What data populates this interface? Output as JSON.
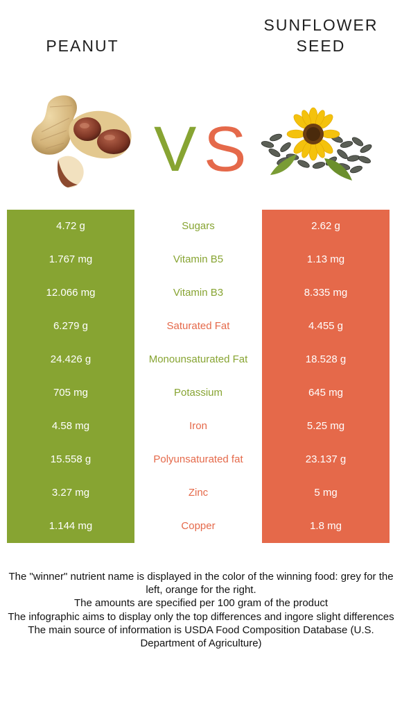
{
  "left_food": {
    "name": "PEANUT",
    "color": "#87a432"
  },
  "right_food": {
    "name": "SUNFLOWER\nSEED",
    "color": "#e5694a"
  },
  "vs": {
    "v": "V",
    "s": "S"
  },
  "rows": [
    {
      "nutrient": "Sugars",
      "left": "4.72 g",
      "right": "2.62 g",
      "winner": "left"
    },
    {
      "nutrient": "Vitamin B5",
      "left": "1.767 mg",
      "right": "1.13 mg",
      "winner": "left"
    },
    {
      "nutrient": "Vitamin B3",
      "left": "12.066 mg",
      "right": "8.335 mg",
      "winner": "left"
    },
    {
      "nutrient": "Saturated Fat",
      "left": "6.279 g",
      "right": "4.455 g",
      "winner": "right"
    },
    {
      "nutrient": "Monounsaturated Fat",
      "left": "24.426 g",
      "right": "18.528 g",
      "winner": "left"
    },
    {
      "nutrient": "Potassium",
      "left": "705 mg",
      "right": "645 mg",
      "winner": "left"
    },
    {
      "nutrient": "Iron",
      "left": "4.58 mg",
      "right": "5.25 mg",
      "winner": "right"
    },
    {
      "nutrient": "Polyunsaturated fat",
      "left": "15.558 g",
      "right": "23.137 g",
      "winner": "right"
    },
    {
      "nutrient": "Zinc",
      "left": "3.27 mg",
      "right": "5 mg",
      "winner": "right"
    },
    {
      "nutrient": "Copper",
      "left": "1.144 mg",
      "right": "1.8 mg",
      "winner": "right"
    }
  ],
  "notes": [
    "The \"winner\" nutrient name is displayed in the color of the winning food: grey for the left, orange for the right.",
    "The amounts are specified per 100 gram of the product",
    "The infographic aims to display only the top differences and ingore slight differences",
    "The main source of information is USDA Food Composition Database (U.S. Department of Agriculture)"
  ],
  "images": {
    "left": "peanut-image",
    "right": "sunflower-seed-image"
  }
}
